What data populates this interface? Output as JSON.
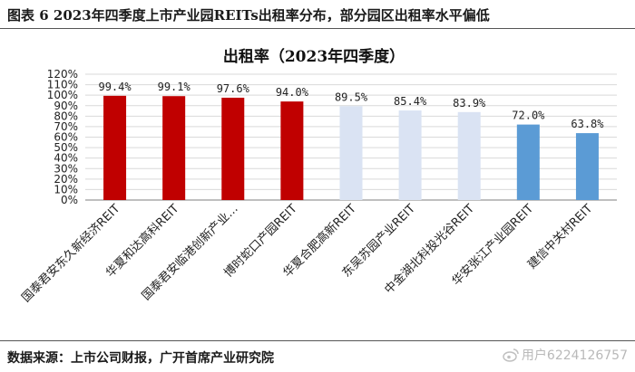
{
  "figure_title": "图表 6 2023年四季度上市产业园REITs出租率分布，部分园区出租率水平偏低",
  "source": "数据来源：上市公司财报，广开首席产业研究院",
  "watermark": "用户6224126757",
  "colors": {
    "red": "#c00000",
    "light": "#dae3f3",
    "blue": "#5b9bd5",
    "grid": "#d9d9d9",
    "axis": "#7f7f7f"
  },
  "chart_data": {
    "type": "bar",
    "title": "出租率（2023年四季度）",
    "xlabel": "",
    "ylabel": "",
    "ylim": [
      0,
      120
    ],
    "yticks": [
      "0%",
      "10%",
      "20%",
      "30%",
      "40%",
      "50%",
      "60%",
      "70%",
      "80%",
      "90%",
      "100%",
      "110%",
      "120%"
    ],
    "grid": true,
    "legend": "none",
    "categories": [
      "国泰君安东久新经济REIT",
      "华夏和达高科REIT",
      "国泰君安临港创新产业…",
      "博时蛇口产园REIT",
      "华夏合肥高新REIT",
      "东吴苏园产业REIT",
      "中金湖北科投光谷REIT",
      "华安张江产业园REIT",
      "建信中关村REIT"
    ],
    "values": [
      99.4,
      99.1,
      97.6,
      94.0,
      89.5,
      85.4,
      83.9,
      72.0,
      63.8
    ],
    "value_labels": [
      "99.4%",
      "99.1%",
      "97.6%",
      "94.0%",
      "89.5%",
      "85.4%",
      "83.9%",
      "72.0%",
      "63.8%"
    ],
    "bar_colors": [
      "#c00000",
      "#c00000",
      "#c00000",
      "#c00000",
      "#dae3f3",
      "#dae3f3",
      "#dae3f3",
      "#5b9bd5",
      "#5b9bd5"
    ]
  }
}
